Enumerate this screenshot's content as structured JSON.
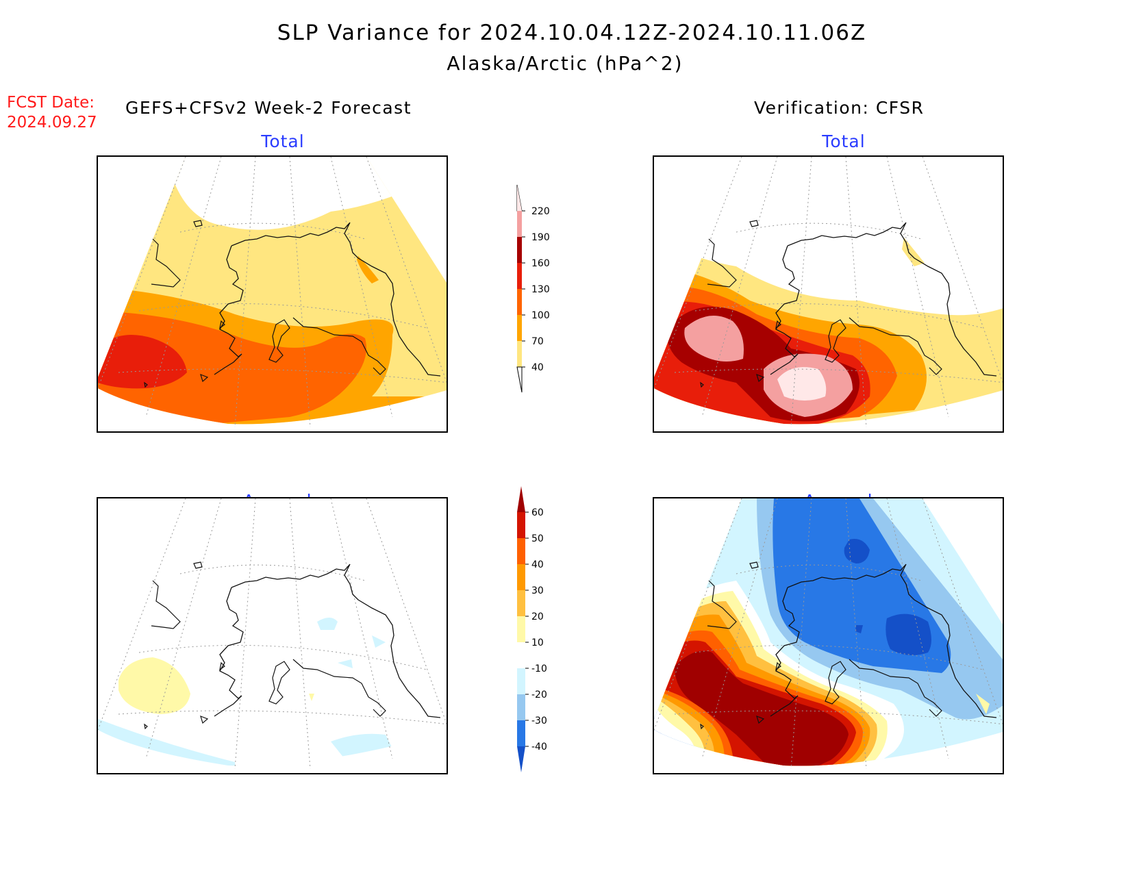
{
  "title": {
    "line1": "SLP Variance for 2024.10.04.12Z-2024.10.11.06Z",
    "line2": "Alaska/Arctic (hPa^2)"
  },
  "forecast_date": {
    "label": "FCST Date:",
    "value": "2024.09.27"
  },
  "left_header": "GEFS+CFSv2 Week-2 Forecast",
  "right_header": "Verification: CFSR",
  "panels": {
    "forecast_total": {
      "title": "Total"
    },
    "forecast_anomaly": {
      "title": "Anomaly"
    },
    "verification_total": {
      "title": "Total"
    },
    "verification_anomaly": {
      "title": "Anomaly"
    }
  },
  "colorbars": {
    "total": {
      "labels": [
        "40",
        "70",
        "100",
        "130",
        "160",
        "190",
        "220"
      ],
      "colors": [
        "#ffe680",
        "#ffa500",
        "#ff6400",
        "#e81e0a",
        "#a60000",
        "#f4a0a0",
        "#ffe8e8"
      ]
    },
    "anomaly": {
      "labels": [
        "-40",
        "-30",
        "-20",
        "-10",
        "10",
        "20",
        "30",
        "40",
        "50",
        "60"
      ],
      "colors": [
        "#1450c8",
        "#2878e6",
        "#96c8f0",
        "#d2f5ff",
        "#ffffff",
        "#fff9a8",
        "#ffc040",
        "#ff9900",
        "#ff6000",
        "#d41400",
        "#a00000"
      ]
    }
  }
}
